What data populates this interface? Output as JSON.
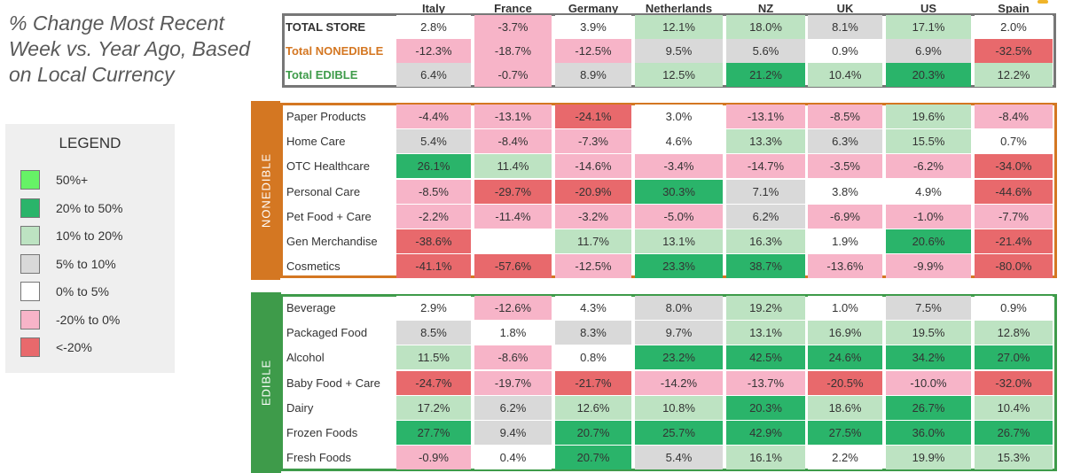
{
  "title": "% Change Most Recent Week vs. Year Ago, Based on Local Currency",
  "legend": {
    "title": "LEGEND",
    "items": [
      {
        "label": "50%+",
        "color": "#66f266"
      },
      {
        "label": "20% to 50%",
        "color": "#2ab46a"
      },
      {
        "label": "10% to 20%",
        "color": "#bde3c2"
      },
      {
        "label": "5% to 10%",
        "color": "#d9d9d9"
      },
      {
        "label": "0% to 5%",
        "color": "#ffffff"
      },
      {
        "label": "-20% to 0%",
        "color": "#f7b4c8"
      },
      {
        "label": "<-20%",
        "color": "#e8696c"
      }
    ]
  },
  "colors": {
    "nonedible": "#d47722",
    "edible": "#3e9b4a",
    "total_box": "#777777"
  },
  "chart_data": {
    "type": "table",
    "columns": [
      "Italy",
      "France",
      "Germany",
      "Netherlands",
      "NZ",
      "UK",
      "US",
      "Spain"
    ],
    "totals": [
      {
        "label": "TOTAL STORE",
        "values": [
          "2.8%",
          "-3.7%",
          "3.9%",
          "12.1%",
          "18.0%",
          "8.1%",
          "17.1%",
          "2.0%"
        ]
      },
      {
        "label": "Total NONEDIBLE",
        "values": [
          "-12.3%",
          "-18.7%",
          "-12.5%",
          "9.5%",
          "5.6%",
          "0.9%",
          "6.9%",
          "-32.5%"
        ]
      },
      {
        "label": "Total EDIBLE",
        "values": [
          "6.4%",
          "-0.7%",
          "8.9%",
          "12.5%",
          "21.2%",
          "10.4%",
          "20.3%",
          "12.2%"
        ]
      }
    ],
    "groups": [
      {
        "label": "NONEDIBLE",
        "rows": [
          {
            "label": "Paper Products",
            "values": [
              "-4.4%",
              "-13.1%",
              "-24.1%",
              "3.0%",
              "-13.1%",
              "-8.5%",
              "19.6%",
              "-8.4%"
            ]
          },
          {
            "label": "Home Care",
            "values": [
              "5.4%",
              "-8.4%",
              "-7.3%",
              "4.6%",
              "13.3%",
              "6.3%",
              "15.5%",
              "0.7%"
            ]
          },
          {
            "label": "OTC Healthcare",
            "values": [
              "26.1%",
              "11.4%",
              "-14.6%",
              "-3.4%",
              "-14.7%",
              "-3.5%",
              "-6.2%",
              "-34.0%"
            ]
          },
          {
            "label": "Personal Care",
            "values": [
              "-8.5%",
              "-29.7%",
              "-20.9%",
              "30.3%",
              "7.1%",
              "3.8%",
              "4.9%",
              "-44.6%"
            ]
          },
          {
            "label": "Pet Food + Care",
            "values": [
              "-2.2%",
              "-11.4%",
              "-3.2%",
              "-5.0%",
              "6.2%",
              "-6.9%",
              "-1.0%",
              "-7.7%"
            ]
          },
          {
            "label": "Gen Merchandise",
            "values": [
              "-38.6%",
              "",
              "11.7%",
              "13.1%",
              "16.3%",
              "1.9%",
              "20.6%",
              "-21.4%"
            ]
          },
          {
            "label": "Cosmetics",
            "values": [
              "-41.1%",
              "-57.6%",
              "-12.5%",
              "23.3%",
              "38.7%",
              "-13.6%",
              "-9.9%",
              "-80.0%"
            ]
          }
        ]
      },
      {
        "label": "EDIBLE",
        "rows": [
          {
            "label": "Beverage",
            "values": [
              "2.9%",
              "-12.6%",
              "4.3%",
              "8.0%",
              "19.2%",
              "1.0%",
              "7.5%",
              "0.9%"
            ]
          },
          {
            "label": "Packaged Food",
            "values": [
              "8.5%",
              "1.8%",
              "8.3%",
              "9.7%",
              "13.1%",
              "16.9%",
              "19.5%",
              "12.8%"
            ]
          },
          {
            "label": "Alcohol",
            "values": [
              "11.5%",
              "-8.6%",
              "0.8%",
              "23.2%",
              "42.5%",
              "24.6%",
              "34.2%",
              "27.0%"
            ]
          },
          {
            "label": "Baby Food + Care",
            "values": [
              "-24.7%",
              "-19.7%",
              "-21.7%",
              "-14.2%",
              "-13.7%",
              "-20.5%",
              "-10.0%",
              "-32.0%"
            ]
          },
          {
            "label": "Dairy",
            "values": [
              "17.2%",
              "6.2%",
              "12.6%",
              "10.8%",
              "20.3%",
              "18.6%",
              "26.7%",
              "10.4%"
            ]
          },
          {
            "label": "Frozen Foods",
            "values": [
              "27.7%",
              "9.4%",
              "20.7%",
              "25.7%",
              "42.9%",
              "27.5%",
              "36.0%",
              "26.7%"
            ]
          },
          {
            "label": "Fresh Foods",
            "values": [
              "-0.9%",
              "0.4%",
              "20.7%",
              "5.4%",
              "16.1%",
              "2.2%",
              "19.9%",
              "15.3%"
            ]
          }
        ]
      }
    ]
  }
}
